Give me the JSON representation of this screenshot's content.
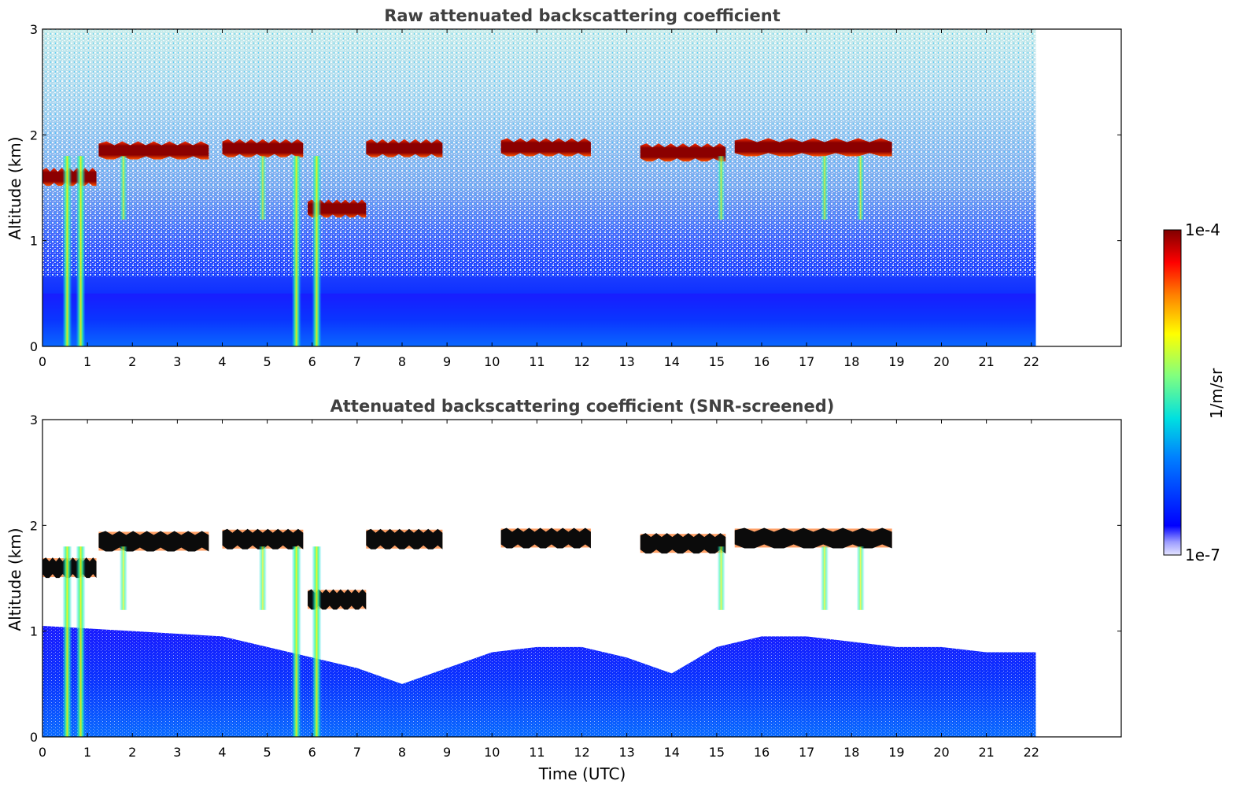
{
  "chart_data": [
    {
      "type": "heatmap",
      "title": "Raw attenuated backscattering coefficient",
      "xlabel": "",
      "ylabel": "Altitude (km)",
      "xlim": [
        0,
        24
      ],
      "ylim": [
        0,
        3
      ],
      "x_ticks": [
        "0",
        "1",
        "2",
        "3",
        "4",
        "5",
        "6",
        "7",
        "8",
        "9",
        "10",
        "11",
        "12",
        "13",
        "14",
        "15",
        "16",
        "17",
        "18",
        "19",
        "20",
        "21",
        "22"
      ],
      "y_ticks": [
        "0",
        "1",
        "2",
        "3"
      ],
      "data_time_end": 22.1,
      "cloud_layers": [
        {
          "t_start": 0.0,
          "t_end": 1.2,
          "alt_km": 1.6
        },
        {
          "t_start": 1.25,
          "t_end": 3.7,
          "alt_km": 1.85
        },
        {
          "t_start": 4.0,
          "t_end": 5.8,
          "alt_km": 1.87
        },
        {
          "t_start": 5.9,
          "t_end": 7.2,
          "alt_km": 1.3
        },
        {
          "t_start": 7.2,
          "t_end": 8.9,
          "alt_km": 1.87
        },
        {
          "t_start": 10.2,
          "t_end": 12.2,
          "alt_km": 1.88
        },
        {
          "t_start": 13.3,
          "t_end": 15.2,
          "alt_km": 1.83
        },
        {
          "t_start": 15.4,
          "t_end": 18.9,
          "alt_km": 1.88
        }
      ],
      "boundary_layer_top_km": 0.5,
      "grid": false
    },
    {
      "type": "heatmap",
      "title": "Attenuated backscattering coefficient (SNR-screened)",
      "xlabel": "Time (UTC)",
      "ylabel": "Altitude (km)",
      "xlim": [
        0,
        24
      ],
      "ylim": [
        0,
        3
      ],
      "x_ticks": [
        "0",
        "1",
        "2",
        "3",
        "4",
        "5",
        "6",
        "7",
        "8",
        "9",
        "10",
        "11",
        "12",
        "13",
        "14",
        "15",
        "16",
        "17",
        "18",
        "19",
        "20",
        "21",
        "22"
      ],
      "y_ticks": [
        "0",
        "1",
        "2",
        "3"
      ],
      "data_time_end": 22.1,
      "screened_boundary_layer_top_km": [
        [
          0,
          1.05
        ],
        [
          2,
          1.0
        ],
        [
          4,
          0.95
        ],
        [
          6,
          0.75
        ],
        [
          7,
          0.65
        ],
        [
          8,
          0.5
        ],
        [
          9,
          0.65
        ],
        [
          10,
          0.8
        ],
        [
          11,
          0.85
        ],
        [
          12,
          0.85
        ],
        [
          13,
          0.75
        ],
        [
          14,
          0.6
        ],
        [
          15,
          0.85
        ],
        [
          16,
          0.95
        ],
        [
          17,
          0.95
        ],
        [
          18,
          0.9
        ],
        [
          19,
          0.85
        ],
        [
          20,
          0.85
        ],
        [
          21,
          0.8
        ],
        [
          22.1,
          0.8
        ]
      ],
      "grid": false
    }
  ],
  "colorbar": {
    "label": "1/m/sr",
    "max_label": "1e-4",
    "min_label": "1e-7",
    "colormap": "jet",
    "scale": "log",
    "range": [
      1e-07,
      0.0001
    ]
  }
}
